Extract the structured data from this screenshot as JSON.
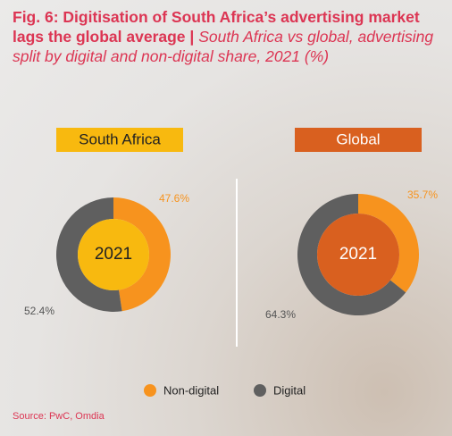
{
  "header": {
    "title": "Fig. 6: Digitisation of South Africa’s advertising market lags the global average |",
    "subtitle": "South Africa vs global, advertising split by digital and non-digital share, 2021 (%)"
  },
  "source": "Source: PwC, Omdia",
  "chart_data": [
    {
      "type": "donut",
      "title": "South Africa",
      "title_color": "#f8b90f",
      "center_label": "2021",
      "center_color": "#f8b90f",
      "categories": [
        "Non-digital",
        "Digital"
      ],
      "values": [
        47.6,
        52.4
      ],
      "value_labels": [
        "47.6%",
        "52.4%"
      ],
      "colors": [
        "#f7931e",
        "#5f5f5f"
      ]
    },
    {
      "type": "donut",
      "title": "Global",
      "title_color": "#d9601f",
      "center_label": "2021",
      "center_color": "#d9601f",
      "categories": [
        "Non-digital",
        "Digital"
      ],
      "values": [
        35.7,
        64.3
      ],
      "value_labels": [
        "35.7%",
        "64.3%"
      ],
      "colors": [
        "#f7931e",
        "#5f5f5f"
      ]
    }
  ]
}
